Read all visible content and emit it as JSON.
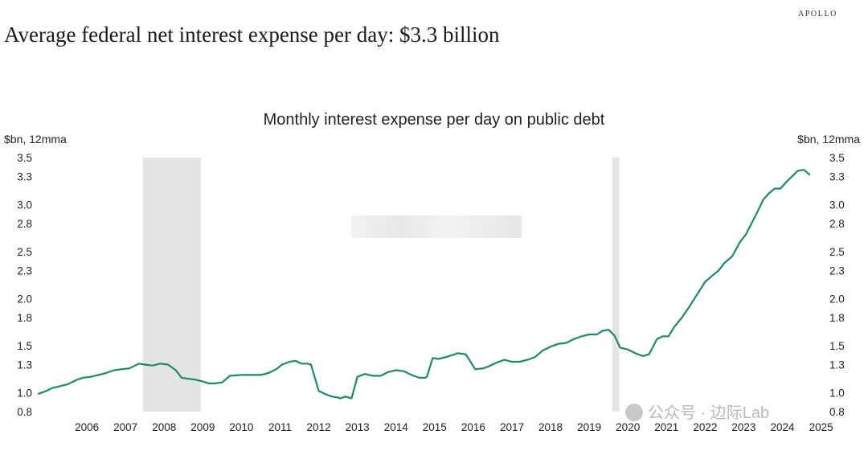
{
  "brand": "APOLLO",
  "headline": "Average federal net interest expense per day: $3.3 billion",
  "watermark": "公众号 · 边际Lab",
  "chart_data": {
    "type": "line",
    "title": "Monthly interest expense per day on public debt",
    "ylabel": "$bn, 12mma",
    "ylabel_right": "$bn, 12mma",
    "ylim": [
      0.8,
      3.5
    ],
    "xlim": [
      2005.25,
      2025.55
    ],
    "y_ticks": [
      "0.8",
      "1.0",
      "1.3",
      "1.5",
      "1.8",
      "2.0",
      "2.3",
      "2.5",
      "2.8",
      "3.0",
      "3.3",
      "3.5"
    ],
    "x_ticks": [
      "2006",
      "2007",
      "2008",
      "2009",
      "2010",
      "2011",
      "2012",
      "2013",
      "2014",
      "2015",
      "2016",
      "2017",
      "2018",
      "2019",
      "2020",
      "2021",
      "2022",
      "2023",
      "2024",
      "2025"
    ],
    "recessions": [
      {
        "start": 2007.95,
        "end": 2009.45
      },
      {
        "start": 2020.1,
        "end": 2020.28
      }
    ],
    "line_color": "#1e8a5e",
    "recession_color": "#e3e5e4",
    "grid": false,
    "series": [
      {
        "x": [
          2005.25,
          2005.45,
          2005.6,
          2005.8,
          2006.0,
          2006.1,
          2006.25,
          2006.4,
          2006.6,
          2006.8,
          2007.0,
          2007.2,
          2007.4,
          2007.6,
          2007.85,
          2008.0,
          2008.2,
          2008.4,
          2008.6,
          2008.8,
          2008.95,
          2009.1,
          2009.3,
          2009.5,
          2009.65,
          2009.8,
          2010.0,
          2010.2,
          2010.5,
          2010.8,
          2011.0,
          2011.2,
          2011.4,
          2011.55,
          2011.75,
          2011.9,
          2012.0,
          2012.05,
          2012.2,
          2012.3,
          2012.5,
          2012.7,
          2012.85,
          2013.0,
          2013.05,
          2013.2,
          2013.35,
          2013.5,
          2013.7,
          2013.9,
          2014.1,
          2014.3,
          2014.5,
          2014.7,
          2014.9,
          2015.1,
          2015.25,
          2015.3,
          2015.45,
          2015.6,
          2015.8,
          2015.95,
          2016.1,
          2016.3,
          2016.35,
          2016.55,
          2016.75,
          2016.9,
          2017.1,
          2017.3,
          2017.5,
          2017.7,
          2017.9,
          2018.1,
          2018.3,
          2018.5,
          2018.7,
          2018.9,
          2019.1,
          2019.3,
          2019.5,
          2019.7,
          2019.85,
          2020.0,
          2020.15,
          2020.3,
          2020.4,
          2020.5,
          2020.6,
          2020.75,
          2020.9,
          2021.05,
          2021.15,
          2021.25,
          2021.4,
          2021.55,
          2021.7,
          2021.9,
          2022.1,
          2022.3,
          2022.5,
          2022.7,
          2022.85,
          2023.0,
          2023.2,
          2023.4,
          2023.55,
          2023.7,
          2023.85,
          2024.0,
          2024.15,
          2024.3,
          2024.45,
          2024.6,
          2024.75,
          2024.9,
          2025.05,
          2025.2
        ],
        "y": [
          0.99,
          1.02,
          1.05,
          1.07,
          1.09,
          1.11,
          1.14,
          1.16,
          1.17,
          1.19,
          1.21,
          1.24,
          1.25,
          1.26,
          1.31,
          1.3,
          1.29,
          1.31,
          1.3,
          1.24,
          1.16,
          1.15,
          1.14,
          1.12,
          1.1,
          1.1,
          1.11,
          1.18,
          1.19,
          1.19,
          1.19,
          1.21,
          1.25,
          1.3,
          1.33,
          1.34,
          1.32,
          1.31,
          1.31,
          1.3,
          1.02,
          0.98,
          0.96,
          0.95,
          0.94,
          0.96,
          0.94,
          1.17,
          1.2,
          1.18,
          1.18,
          1.22,
          1.24,
          1.23,
          1.19,
          1.16,
          1.16,
          1.17,
          1.37,
          1.36,
          1.38,
          1.4,
          1.42,
          1.41,
          1.38,
          1.25,
          1.26,
          1.28,
          1.32,
          1.35,
          1.33,
          1.33,
          1.35,
          1.38,
          1.45,
          1.49,
          1.52,
          1.53,
          1.57,
          1.6,
          1.62,
          1.62,
          1.66,
          1.67,
          1.61,
          1.48,
          1.47,
          1.46,
          1.44,
          1.41,
          1.39,
          1.41,
          1.49,
          1.57,
          1.6,
          1.6,
          1.7,
          1.8,
          1.92,
          2.05,
          2.18,
          2.25,
          2.3,
          2.38,
          2.45,
          2.6,
          2.68,
          2.8,
          2.92,
          3.05,
          3.12,
          3.17,
          3.17,
          3.24,
          3.3,
          3.36,
          3.37,
          3.32
        ]
      }
    ]
  }
}
